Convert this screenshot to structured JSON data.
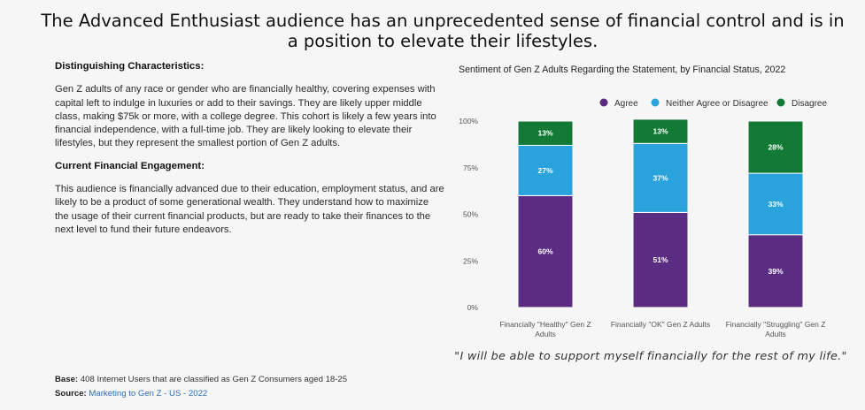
{
  "headline": "The Advanced Enthusiast audience has an unprecedented sense of financial control and is in a position to elevate their lifestyles.",
  "left": {
    "section1_title": "Distinguishing Characteristics:",
    "section1_text": "Gen Z adults of any race or gender who are financially healthy, covering expenses with capital left to indulge in luxuries or add to their savings. They are likely upper middle class, making $75k or more, with a college degree. This cohort is likely a few years into financial independence, with a full-time job. They are likely looking to elevate their lifestyles, but they represent the smallest portion of Gen Z adults.",
    "section2_title": "Current Financial Engagement:",
    "section2_text": "This audience is financially advanced due to their education, employment status, and are likely to be a product of some generational wealth. They understand how to maximize the usage of their current financial products, but are ready to take their finances to the next level to fund their future endeavors."
  },
  "quote": "\"I will be able to support myself financially for the rest of my life.\"",
  "footer": {
    "base_label": "Base:",
    "base_text": "408 Internet Users that are classified as Gen Z Consumers aged 18-25",
    "source_label": "Source:",
    "source_text": "Marketing to Gen Z - US - 2022"
  },
  "chart_data": {
    "type": "bar",
    "stacked": true,
    "title": "Sentiment of Gen Z Adults Regarding the Statement, by Financial Status, 2022",
    "categories": [
      [
        "Financially \"Healthy\" Gen Z",
        "Adults"
      ],
      [
        "Financially \"OK\" Gen Z Adults"
      ],
      [
        "Financially \"Struggling\" Gen Z",
        "Adults"
      ]
    ],
    "series": [
      {
        "name": "Agree",
        "color": "#5b2d82",
        "values": [
          60,
          51,
          39
        ],
        "labels": [
          "60%",
          "51%",
          "39%"
        ]
      },
      {
        "name": "Neither Agree or Disagree",
        "color": "#2aa3dd",
        "values": [
          27,
          37,
          33
        ],
        "labels": [
          "27%",
          "37%",
          "33%"
        ]
      },
      {
        "name": "Disagree",
        "color": "#137a35",
        "values": [
          13,
          13,
          28
        ],
        "labels": [
          "13%",
          "13%",
          "28%"
        ]
      }
    ],
    "yticks": [
      "0%",
      "25%",
      "50%",
      "75%",
      "100%"
    ],
    "ylim": [
      0,
      100
    ],
    "legend_position": "top-right",
    "grid": false
  }
}
